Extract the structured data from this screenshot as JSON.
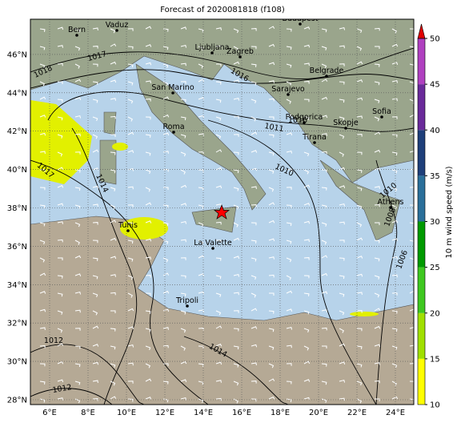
{
  "title": "Forecast of 2020081818 (f108)",
  "longitude_labels": [
    "6°E",
    "8°E",
    "10°E",
    "12°E",
    "14°E",
    "16°E",
    "18°E",
    "20°E",
    "22°E",
    "24°E"
  ],
  "latitude_labels": [
    "28°N",
    "30°N",
    "32°N",
    "34°N",
    "36°N",
    "38°N",
    "40°N",
    "42°N",
    "44°N",
    "46°N"
  ],
  "cities": [
    "Bern",
    "Vaduz",
    "Budapest",
    "Ljubljana",
    "Zagreb",
    "Belgrade",
    "Sarajevo",
    "San Marino",
    "Podgorica",
    "Sofia",
    "Skopje",
    "Tirana",
    "Roma",
    "Tunis",
    "La Valette",
    "Athens",
    "Tripoli"
  ],
  "isobar_labels": [
    1017,
    1018,
    1016,
    1016,
    1011,
    1010,
    1017,
    1014,
    1010,
    1008,
    1006,
    1012,
    1014,
    1012
  ],
  "colorbar": {
    "label": "10 m wind speed (m/s)",
    "ticks": [
      10,
      15,
      20,
      25,
      30,
      35,
      40,
      45,
      50
    ]
  }
}
